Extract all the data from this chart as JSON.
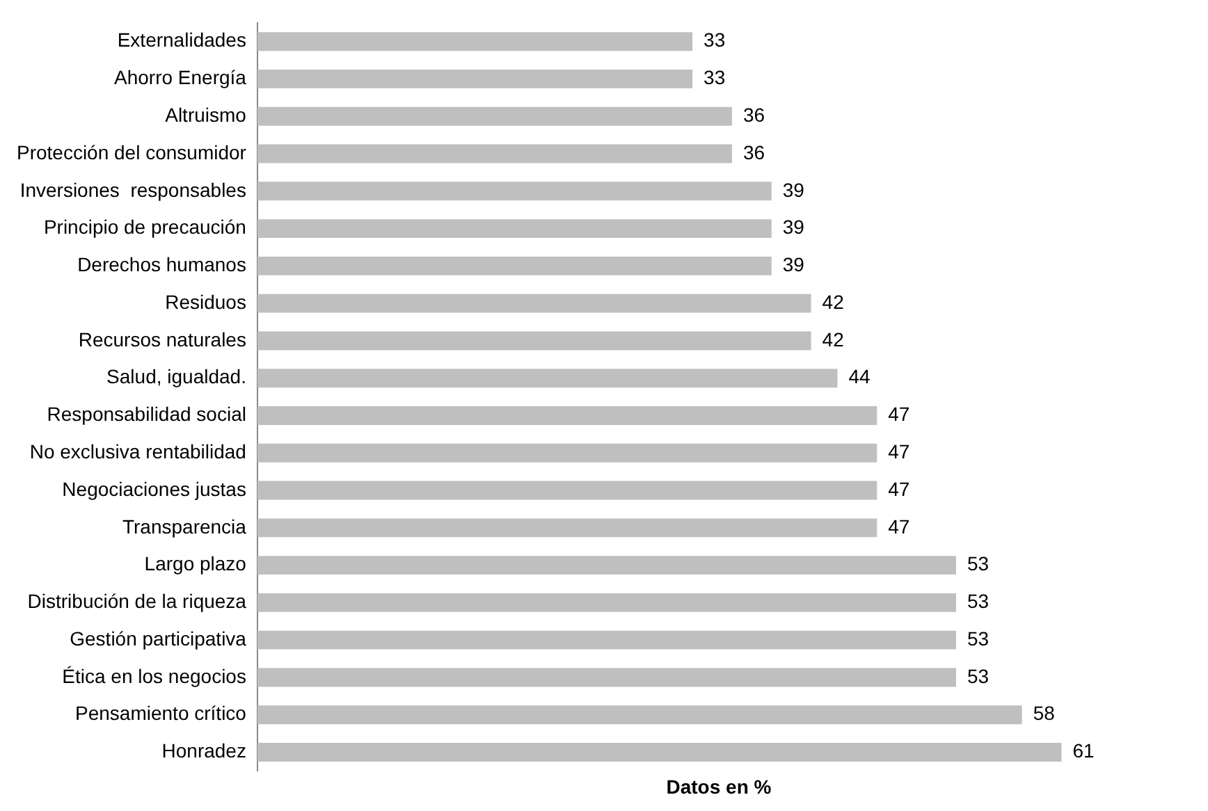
{
  "chart_data": {
    "type": "bar",
    "orientation": "horizontal",
    "xlabel": "Datos en %",
    "categories": [
      "Externalidades",
      "Ahorro Energía",
      "Altruismo",
      "Protección del consumidor",
      "Inversiones  responsables",
      "Principio de precaución",
      "Derechos humanos",
      "Residuos",
      "Recursos naturales",
      "Salud, igualdad.",
      "Responsabilidad social",
      "No exclusiva rentabilidad",
      "Negociaciones justas",
      "Transparencia",
      "Largo plazo",
      "Distribución de la riqueza",
      "Gestión participativa",
      "Ética en los negocios",
      "Pensamiento crítico",
      "Honradez"
    ],
    "values": [
      33,
      33,
      36,
      36,
      39,
      39,
      39,
      42,
      42,
      44,
      47,
      47,
      47,
      47,
      53,
      53,
      53,
      53,
      58,
      61
    ],
    "color": "#bfbfbf",
    "data_labels": true,
    "grid": false,
    "legend": false,
    "tick_labels": "y"
  }
}
